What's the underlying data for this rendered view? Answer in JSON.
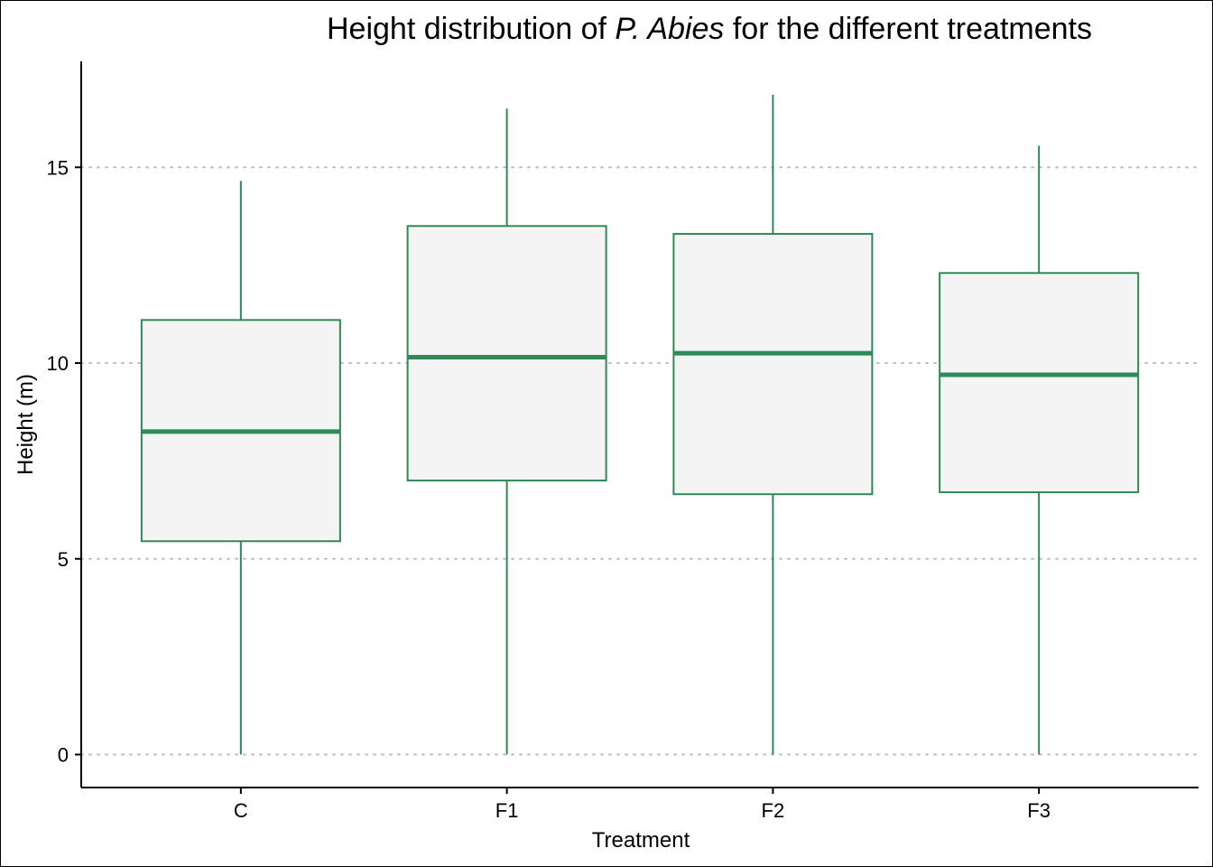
{
  "chart_data": {
    "type": "boxplot",
    "title": {
      "prefix": "Height distribution of ",
      "italic": "P. Abies",
      "suffix": " for the different treatments"
    },
    "xlabel": "Treatment",
    "ylabel": "Height (m)",
    "ylim": [
      -0.85,
      17.8
    ],
    "yticks": [
      0,
      5,
      10,
      15
    ],
    "grid": "horizontal-dotted",
    "colors": {
      "box_stroke": "#2e8b57",
      "box_fill": "#f4f4f4",
      "grid": "#bdbdbd",
      "axis": "#000000"
    },
    "categories": [
      "C",
      "F1",
      "F2",
      "F3"
    ],
    "boxes": [
      {
        "category": "C",
        "min": 0,
        "q1": 5.45,
        "median": 8.25,
        "q3": 11.1,
        "max": 14.65
      },
      {
        "category": "F1",
        "min": 0,
        "q1": 7.0,
        "median": 10.15,
        "q3": 13.5,
        "max": 16.5
      },
      {
        "category": "F2",
        "min": 0,
        "q1": 6.65,
        "median": 10.25,
        "q3": 13.3,
        "max": 16.85
      },
      {
        "category": "F3",
        "min": 0,
        "q1": 6.7,
        "median": 9.7,
        "q3": 12.3,
        "max": 15.55
      }
    ]
  }
}
